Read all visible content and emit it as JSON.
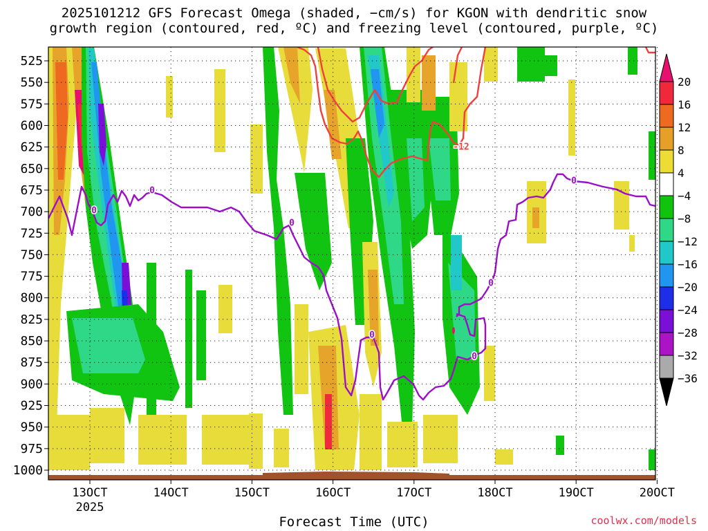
{
  "chart_data": {
    "type": "heatmap",
    "title_line1": "2025101212 GFS Forecast Omega (shaded, −cm/s) for KGON with dendritic snow",
    "title_line2": "growth region (contoured, red, ºC) and freezing level (contoured, purple, ºC)",
    "xlabel": "Forecast Time (UTC)",
    "ylabel": "",
    "x_ticks": [
      "13OCT",
      "14OCT",
      "15OCT",
      "16OCT",
      "17OCT",
      "18OCT",
      "19OCT",
      "20OCT"
    ],
    "x_year": "2025",
    "x_range_days": [
      12.5,
      20.0
    ],
    "y_ticks": [
      525,
      550,
      575,
      600,
      625,
      650,
      675,
      700,
      725,
      750,
      775,
      800,
      825,
      850,
      875,
      900,
      925,
      950,
      975,
      1000
    ],
    "y_range": [
      510,
      1015
    ],
    "grid": true,
    "colorbar": {
      "labels": [
        "20",
        "16",
        "12",
        "8",
        "4",
        "−4",
        "−8",
        "−12",
        "−16",
        "−20",
        "−24",
        "−28",
        "−32",
        "−36"
      ],
      "colors": [
        "#e8106e",
        "#f0283c",
        "#ee6a20",
        "#e6a028",
        "#ecdc34",
        "#ffffff",
        "#10c40e",
        "#2ed886",
        "#20c8c8",
        "#2196f0",
        "#1e2ee8",
        "#7a10d8",
        "#aa14c6",
        "#aaaaaa",
        "#000000"
      ]
    },
    "contours": {
      "freezing_level": {
        "color": "#9b10c6",
        "label": "0"
      },
      "dendritic_growth": {
        "color": "#f0403c",
        "label": "−12"
      }
    },
    "annotations": {
      "freezing_label": "0",
      "dgz_label": "-12"
    }
  },
  "footer": {
    "credit": "coolwx.com/models"
  }
}
